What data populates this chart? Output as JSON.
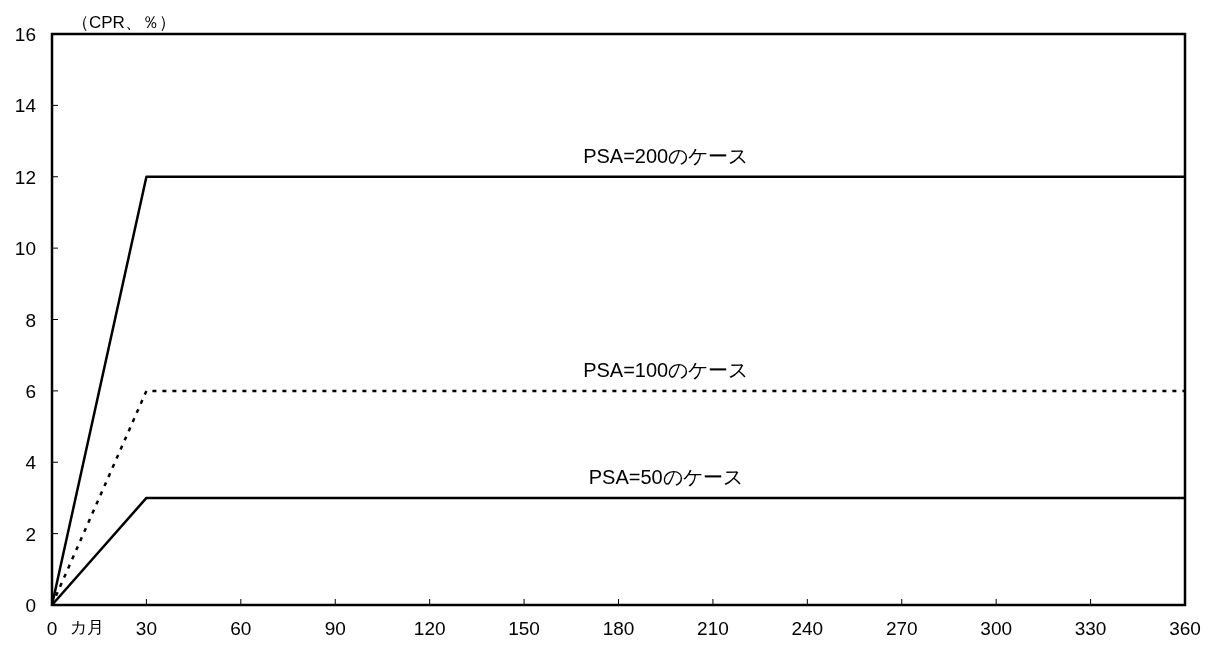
{
  "chart_data": {
    "type": "line",
    "ylabel": "（CPR、％）",
    "xlabel": "カ月",
    "xlim": [
      0,
      360
    ],
    "xticks": [
      0,
      30,
      60,
      90,
      120,
      150,
      180,
      210,
      240,
      270,
      300,
      330,
      360
    ],
    "ylim": [
      0,
      16
    ],
    "yticks": [
      0,
      2,
      4,
      6,
      8,
      10,
      12,
      14,
      16
    ],
    "x": [
      0,
      30,
      360
    ],
    "series": [
      {
        "name": "PSA=200のケース",
        "color": "#000000",
        "values": [
          0,
          12,
          12
        ],
        "line_style": "solid"
      },
      {
        "name": "PSA=100のケース",
        "color": "#000000",
        "values": [
          0,
          6,
          6
        ],
        "line_style": "dotted"
      },
      {
        "name": "PSA=50のケース",
        "color": "#000000",
        "values": [
          0,
          3,
          3
        ],
        "line_style": "solid"
      }
    ],
    "grid": false,
    "marker": "none"
  }
}
